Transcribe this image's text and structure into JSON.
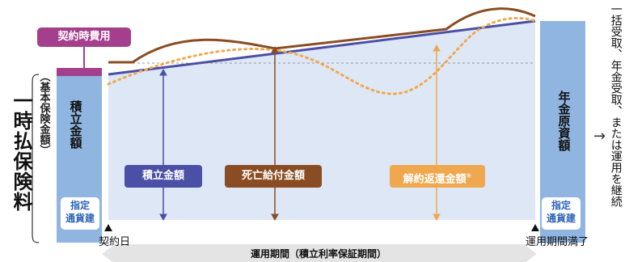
{
  "fees": {
    "contract_fee": "契約時費用"
  },
  "premium": {
    "title": "一時払保険料",
    "base_amount_note": "（基本保険金額）"
  },
  "columns": {
    "left_label": "積立金額",
    "right_label": "年金原資額",
    "badge": "指定\n通貨建"
  },
  "legend": {
    "accumulated": "積立金額",
    "death_benefit": "死亡給付金額",
    "surrender_value": "解約返還金額",
    "surrender_note": "※"
  },
  "timeline": {
    "start": "契約日",
    "end": "運用期間満了",
    "period": "運用期間（積立利率保証期間）"
  },
  "outcome": "一括受取、年金受取、または運用を継続",
  "colors": {
    "accumulated": "#4b4fa6",
    "death_benefit": "#8a4d23",
    "surrender_value": "#f0a84f",
    "contract_fee": "#a43f8e",
    "column_fill": "#8fb5e0",
    "area_fill": "#dde7f5",
    "badge_text": "#2b63b8"
  },
  "icons": {
    "next": "arrow-right-icon",
    "marker": "triangle-up-icon"
  }
}
